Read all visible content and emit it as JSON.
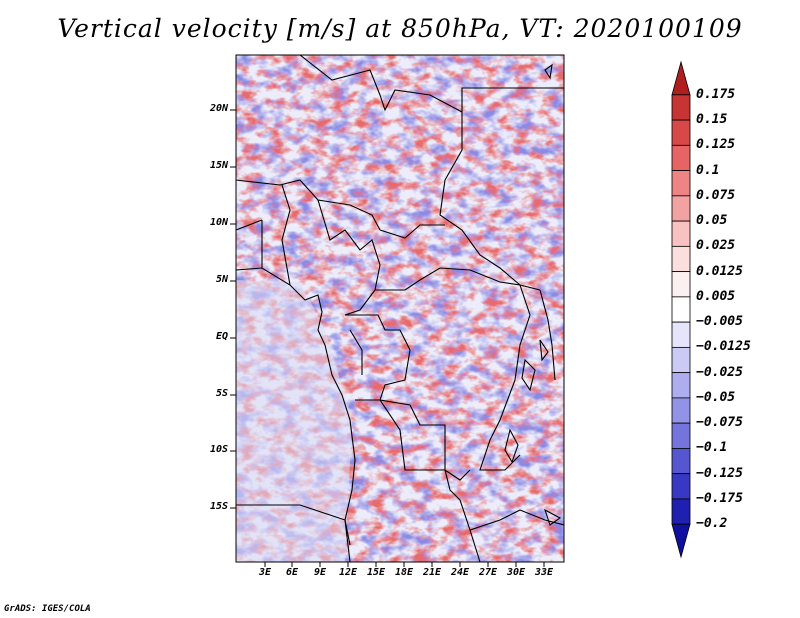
{
  "title": "Vertical velocity [m/s] at 850hPa, VT: 2020100109",
  "footer": "GrADS: IGES/COLA",
  "latitude_labels": [
    "20N",
    "15N",
    "10N",
    "5N",
    "EQ",
    "5S",
    "10S",
    "15S"
  ],
  "longitude_labels": [
    "3E",
    "6E",
    "9E",
    "12E",
    "15E",
    "18E",
    "21E",
    "24E",
    "27E",
    "30E",
    "33E"
  ],
  "colorbar": {
    "labels": [
      "0.175",
      "0.15",
      "0.125",
      "0.1",
      "0.075",
      "0.05",
      "0.025",
      "0.0125",
      "0.005",
      "−0.005",
      "−0.0125",
      "−0.025",
      "−0.05",
      "−0.075",
      "−0.1",
      "−0.125",
      "−0.175",
      "−0.2"
    ],
    "colors": [
      "#b01e1e",
      "#c63434",
      "#d84848",
      "#e66464",
      "#ee8484",
      "#f3a2a2",
      "#f8c2c2",
      "#fbdede",
      "#fdf0f0",
      "#ffffff",
      "#e4e4fa",
      "#cacaf4",
      "#aeaeee",
      "#9292e6",
      "#7474dc",
      "#5656d0",
      "#3838c4",
      "#2020b0",
      "#1010a0"
    ]
  }
}
